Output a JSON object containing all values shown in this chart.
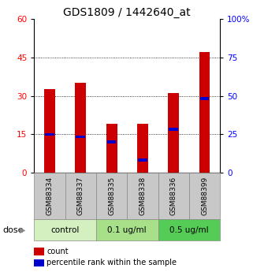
{
  "title": "GDS1809 / 1442640_at",
  "samples": [
    "GSM88334",
    "GSM88337",
    "GSM88335",
    "GSM88338",
    "GSM88336",
    "GSM88399"
  ],
  "count_values": [
    32.5,
    35.0,
    19.0,
    19.0,
    31.0,
    47.0
  ],
  "percentile_right": [
    25.0,
    23.3,
    20.0,
    8.3,
    28.3,
    48.3
  ],
  "groups": [
    {
      "label": "control",
      "indices": [
        0,
        1
      ],
      "color": "#d4f0c0"
    },
    {
      "label": "0.1 ug/ml",
      "indices": [
        2,
        3
      ],
      "color": "#a8e08a"
    },
    {
      "label": "0.5 ug/ml",
      "indices": [
        4,
        5
      ],
      "color": "#55cc55"
    }
  ],
  "ylim_left": [
    0,
    60
  ],
  "ylim_right": [
    0,
    100
  ],
  "yticks_left": [
    0,
    15,
    30,
    45,
    60
  ],
  "ytick_labels_left": [
    "0",
    "15",
    "30",
    "45",
    "60"
  ],
  "yticks_right": [
    0,
    25,
    50,
    75,
    100
  ],
  "ytick_labels_right": [
    "0",
    "25",
    "50",
    "75",
    "100%"
  ],
  "gridlines": [
    15,
    30,
    45
  ],
  "bar_color": "#cc0000",
  "blue_color": "#0000cc",
  "bar_width": 0.35,
  "sample_bg_color": "#c8c8c8",
  "dose_label": "dose",
  "arrow": "▶",
  "legend_count": "count",
  "legend_percentile": "percentile rank within the sample",
  "title_fontsize": 10,
  "tick_fontsize": 7.5,
  "sample_fontsize": 6.5,
  "group_fontsize": 7.5,
  "legend_fontsize": 7
}
